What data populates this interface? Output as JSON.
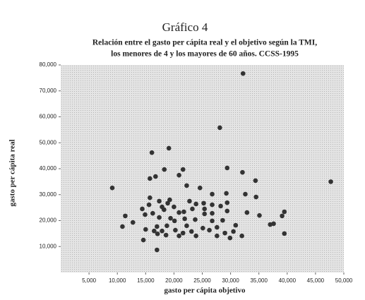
{
  "chart_data": {
    "type": "scatter",
    "title": "Gráfico 4",
    "subtitle": [
      "Relación entre el gasto per cápita real y el objetivo según la TMI,",
      "los menores de 4 y los mayores de 60 años.  CCSS-1995"
    ],
    "xlabel": "gasto per cápita objetivo",
    "ylabel": "gasto per cápita real",
    "color": "#333333",
    "xlim": [
      0,
      50000
    ],
    "ylim": [
      0,
      80000
    ],
    "xticks": [
      {
        "value": 5000,
        "label": "5,000"
      },
      {
        "value": 10000,
        "label": "10,000"
      },
      {
        "value": 15000,
        "label": "15,000"
      },
      {
        "value": 20000,
        "label": "20,000"
      },
      {
        "value": 25000,
        "label": "25,000"
      },
      {
        "value": 30000,
        "label": "30,000"
      },
      {
        "value": 35000,
        "label": "35,000"
      },
      {
        "value": 40000,
        "label": "40,000"
      },
      {
        "value": 45000,
        "label": "45,000"
      },
      {
        "value": 50000,
        "label": "50,000"
      }
    ],
    "yticks": [
      {
        "value": 10000,
        "label": "10,000"
      },
      {
        "value": 20000,
        "label": "20,000"
      },
      {
        "value": 30000,
        "label": "30,000"
      },
      {
        "value": 40000,
        "label": "40,000"
      },
      {
        "value": 50000,
        "label": "50,000"
      },
      {
        "value": 60000,
        "label": "60,000"
      },
      {
        "value": 70000,
        "label": "70,000"
      },
      {
        "value": 80000,
        "label": "80,000"
      }
    ],
    "x": [
      32200,
      28100,
      19100,
      16100,
      47700,
      9100,
      29400,
      32100,
      21600,
      18300,
      20900,
      16750,
      15750,
      22250,
      24600,
      34400,
      32600,
      34500,
      26750,
      29250,
      15750,
      17400,
      19250,
      22750,
      25250,
      18900,
      15600,
      14400,
      17900,
      20000,
      21750,
      23900,
      26750,
      28250,
      29400,
      25400,
      23250,
      18250,
      16250,
      14900,
      32900,
      35100,
      39500,
      39100,
      29400,
      26750,
      25400,
      20900,
      17400,
      19400,
      21900,
      20100,
      23750,
      26750,
      28600,
      30900,
      27600,
      25100,
      22250,
      18750,
      17000,
      12750,
      10900,
      15000,
      16500,
      17900,
      20250,
      21600,
      23100,
      26250,
      29000,
      30500,
      32000,
      39500,
      37600,
      37000,
      17100,
      18600,
      20900,
      23900,
      27600,
      29900,
      14600,
      17000,
      11400
    ],
    "y": [
      76700,
      55800,
      47900,
      46200,
      35000,
      32600,
      40300,
      38600,
      39700,
      39700,
      37500,
      37000,
      36200,
      33500,
      32600,
      35400,
      30200,
      29100,
      30200,
      30500,
      28800,
      27500,
      28000,
      27500,
      26700,
      26700,
      26100,
      24500,
      25300,
      25300,
      23400,
      26400,
      26100,
      25600,
      26900,
      24500,
      24500,
      24200,
      22800,
      22300,
      23100,
      22000,
      23400,
      21800,
      23700,
      22800,
      22600,
      23100,
      21200,
      20900,
      20700,
      19900,
      20400,
      19900,
      20100,
      18200,
      17400,
      17100,
      18000,
      18000,
      17700,
      19300,
      17700,
      16600,
      16000,
      16000,
      16300,
      15200,
      15800,
      16300,
      15200,
      15800,
      14100,
      15000,
      18800,
      18500,
      14900,
      14400,
      14100,
      14100,
      14100,
      13300,
      12500,
      8700,
      21800
    ]
  }
}
